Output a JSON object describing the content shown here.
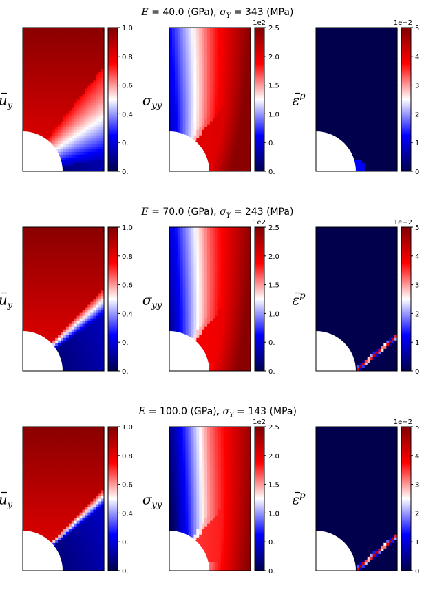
{
  "chart_data": [
    {
      "type": "heatmap",
      "title": "E = 40.0 (GPa), σ_Y = 343 (MPa)",
      "title_parts": {
        "e_value": "40.0",
        "e_unit": "(GPa),",
        "sy_value": "343",
        "sy_unit": "(MPa)"
      },
      "panels": [
        {
          "field": "u_y",
          "ylabel_main": "u",
          "ylabel_sub": "y",
          "ylabel_sup": "",
          "bar": true,
          "colorbar": {
            "range": [
              0.0,
              1.0
            ],
            "ticks": [
              "0.0",
              "0.2",
              "0.4",
              "0.6",
              "0.8",
              "1.0"
            ],
            "multiplier": ""
          },
          "pattern": {
            "kind": "uy",
            "band_angle_deg": 30,
            "band_width": 0.45
          }
        },
        {
          "field": "sigma_yy",
          "ylabel_main": "σ",
          "ylabel_sub": "yy",
          "ylabel_sup": "",
          "bar": false,
          "colorbar": {
            "range": [
              0.0,
              2.5
            ],
            "ticks": [
              "0.0",
              "0.5",
              "1.0",
              "1.5",
              "2.0",
              "2.5"
            ],
            "multiplier": "1e2"
          },
          "pattern": {
            "kind": "syy",
            "blue_extent": 0.35
          }
        },
        {
          "field": "eps_p",
          "ylabel_main": "ε",
          "ylabel_sub": "",
          "ylabel_sup": "p",
          "bar": true,
          "colorbar": {
            "range": [
              0,
              5
            ],
            "ticks": [
              "0",
              "1",
              "2",
              "3",
              "4",
              "5"
            ],
            "multiplier": "1e−2"
          },
          "pattern": {
            "kind": "ep",
            "shear_band": false
          }
        }
      ]
    },
    {
      "type": "heatmap",
      "title": "E = 70.0 (GPa), σ_Y = 243 (MPa)",
      "title_parts": {
        "e_value": "70.0",
        "e_unit": "(GPa),",
        "sy_value": "243",
        "sy_unit": "(MPa)"
      },
      "panels": [
        {
          "field": "u_y",
          "ylabel_main": "u",
          "ylabel_sub": "y",
          "ylabel_sup": "",
          "bar": true,
          "colorbar": {
            "range": [
              0.0,
              1.0
            ],
            "ticks": [
              "0.0",
              "0.2",
              "0.4",
              "0.6",
              "0.8",
              "1.0"
            ],
            "multiplier": ""
          },
          "pattern": {
            "kind": "uy",
            "band_angle_deg": 40,
            "band_width": 0.08
          }
        },
        {
          "field": "sigma_yy",
          "ylabel_main": "σ",
          "ylabel_sub": "yy",
          "ylabel_sup": "",
          "bar": false,
          "colorbar": {
            "range": [
              0.0,
              2.5
            ],
            "ticks": [
              "0.0",
              "0.5",
              "1.0",
              "1.5",
              "2.0",
              "2.5"
            ],
            "multiplier": "1e2"
          },
          "pattern": {
            "kind": "syy",
            "blue_extent": 0.5
          }
        },
        {
          "field": "eps_p",
          "ylabel_main": "ε",
          "ylabel_sub": "",
          "ylabel_sup": "p",
          "bar": true,
          "colorbar": {
            "range": [
              0,
              5
            ],
            "ticks": [
              "0",
              "1",
              "2",
              "3",
              "4",
              "5"
            ],
            "multiplier": "1e−2"
          },
          "pattern": {
            "kind": "ep",
            "shear_band": true
          }
        }
      ]
    },
    {
      "type": "heatmap",
      "title": "E = 100.0 (GPa), σ_Y = 143 (MPa)",
      "title_parts": {
        "e_value": "100.0",
        "e_unit": "(GPa),",
        "sy_value": "143",
        "sy_unit": "(MPa)"
      },
      "panels": [
        {
          "field": "u_y",
          "ylabel_main": "u",
          "ylabel_sub": "y",
          "ylabel_sup": "",
          "bar": true,
          "colorbar": {
            "range": [
              0.0,
              1.0
            ],
            "ticks": [
              "0.0",
              "0.2",
              "0.4",
              "0.6",
              "0.8",
              "1.0"
            ],
            "multiplier": ""
          },
          "pattern": {
            "kind": "uy",
            "band_angle_deg": 42,
            "band_width": 0.03
          }
        },
        {
          "field": "sigma_yy",
          "ylabel_main": "σ",
          "ylabel_sub": "yy",
          "ylabel_sup": "",
          "bar": false,
          "colorbar": {
            "range": [
              0.0,
              2.5
            ],
            "ticks": [
              "0.0",
              "0.5",
              "1.0",
              "1.5",
              "2.0",
              "2.5"
            ],
            "multiplier": "1e2"
          },
          "pattern": {
            "kind": "syy",
            "blue_extent": 0.75
          }
        },
        {
          "field": "eps_p",
          "ylabel_main": "ε",
          "ylabel_sub": "",
          "ylabel_sup": "p",
          "bar": true,
          "colorbar": {
            "range": [
              0,
              5
            ],
            "ticks": [
              "0",
              "1",
              "2",
              "3",
              "4",
              "5"
            ],
            "multiplier": "1e−2"
          },
          "pattern": {
            "kind": "ep",
            "shear_band": true
          }
        }
      ]
    }
  ],
  "colormap": {
    "name": "seismic",
    "stops": [
      "#00004d",
      "#0000ff",
      "#ffffff",
      "#ff0000",
      "#800000"
    ]
  }
}
